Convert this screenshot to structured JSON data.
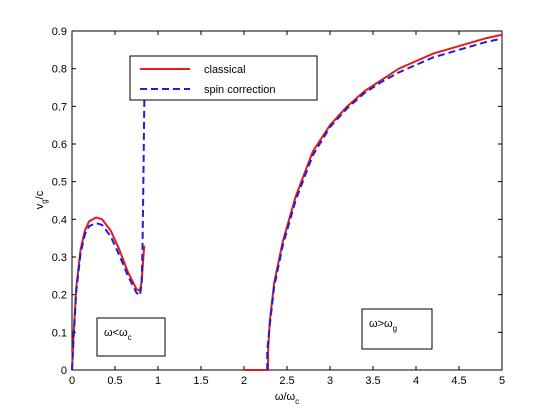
{
  "chart_data": {
    "type": "line",
    "xlabel_main": "ω/ω",
    "xlabel_sub": "c",
    "ylabel_main": "v",
    "ylabel_sub": "g",
    "ylabel_tail": "/c",
    "xlim": [
      0,
      5
    ],
    "ylim": [
      0,
      0.9
    ],
    "xticks": [
      0,
      0.5,
      1,
      1.5,
      2,
      2.5,
      3,
      3.5,
      4,
      4.5,
      5
    ],
    "xtick_labels": [
      "0",
      "0.5",
      "1",
      "1.5",
      "2",
      "2.5",
      "3",
      "3.5",
      "4",
      "4.5",
      "5"
    ],
    "yticks": [
      0,
      0.1,
      0.2,
      0.3,
      0.4,
      0.5,
      0.6,
      0.7,
      0.8,
      0.9
    ],
    "ytick_labels": [
      "0",
      "0.1",
      "0.2",
      "0.3",
      "0.4",
      "0.5",
      "0.6",
      "0.7",
      "0.8",
      "0.9"
    ],
    "grid": false,
    "legend_position": "top-left",
    "series": [
      {
        "name": "classical",
        "color": "#e41a1c",
        "style": "solid",
        "segments": [
          [
            [
              0,
              0
            ],
            [
              0.02,
              0.1
            ],
            [
              0.05,
              0.22
            ],
            [
              0.1,
              0.32
            ],
            [
              0.15,
              0.37
            ],
            [
              0.2,
              0.395
            ],
            [
              0.28,
              0.405
            ],
            [
              0.35,
              0.4
            ],
            [
              0.45,
              0.37
            ],
            [
              0.55,
              0.32
            ],
            [
              0.65,
              0.26
            ],
            [
              0.75,
              0.215
            ],
            [
              0.79,
              0.21
            ],
            [
              0.81,
              0.235
            ],
            [
              0.83,
              0.3
            ],
            [
              0.84,
              0.33
            ]
          ],
          [
            [
              2.0,
              0
            ],
            [
              2.28,
              0
            ],
            [
              2.28,
              0.05
            ],
            [
              2.3,
              0.13
            ],
            [
              2.35,
              0.23
            ],
            [
              2.45,
              0.34
            ],
            [
              2.6,
              0.46
            ],
            [
              2.8,
              0.58
            ],
            [
              3.0,
              0.65
            ],
            [
              3.2,
              0.7
            ],
            [
              3.4,
              0.74
            ],
            [
              3.6,
              0.77
            ],
            [
              3.8,
              0.8
            ],
            [
              4.0,
              0.82
            ],
            [
              4.2,
              0.84
            ],
            [
              4.5,
              0.86
            ],
            [
              4.8,
              0.88
            ],
            [
              5.0,
              0.89
            ]
          ]
        ]
      },
      {
        "name": "spin correction",
        "color": "#1f1fd1",
        "style": "dashed",
        "segments": [
          [
            [
              0,
              0
            ],
            [
              0.02,
              0.09
            ],
            [
              0.05,
              0.21
            ],
            [
              0.1,
              0.31
            ],
            [
              0.15,
              0.36
            ],
            [
              0.2,
              0.382
            ],
            [
              0.28,
              0.39
            ],
            [
              0.35,
              0.385
            ],
            [
              0.45,
              0.355
            ],
            [
              0.55,
              0.305
            ],
            [
              0.65,
              0.25
            ],
            [
              0.75,
              0.205
            ],
            [
              0.79,
              0.198
            ],
            [
              0.81,
              0.23
            ],
            [
              0.82,
              0.33
            ],
            [
              0.83,
              0.5
            ],
            [
              0.84,
              0.7
            ],
            [
              0.845,
              0.75
            ]
          ],
          [
            [
              2.27,
              0
            ],
            [
              2.27,
              0.05
            ],
            [
              2.3,
              0.12
            ],
            [
              2.35,
              0.22
            ],
            [
              2.45,
              0.33
            ],
            [
              2.6,
              0.45
            ],
            [
              2.8,
              0.57
            ],
            [
              3.0,
              0.645
            ],
            [
              3.2,
              0.695
            ],
            [
              3.4,
              0.735
            ],
            [
              3.6,
              0.765
            ],
            [
              3.8,
              0.79
            ],
            [
              4.0,
              0.81
            ],
            [
              4.2,
              0.83
            ],
            [
              4.5,
              0.85
            ],
            [
              4.8,
              0.87
            ],
            [
              5.0,
              0.88
            ]
          ]
        ]
      }
    ],
    "annotations": [
      {
        "text_main": "ω<ω",
        "text_sub": "c",
        "x": 0.2,
        "y": 0.1
      },
      {
        "text_main": "ω>ω",
        "text_sub": "g",
        "x": 3.9,
        "y": 0.11
      }
    ]
  }
}
